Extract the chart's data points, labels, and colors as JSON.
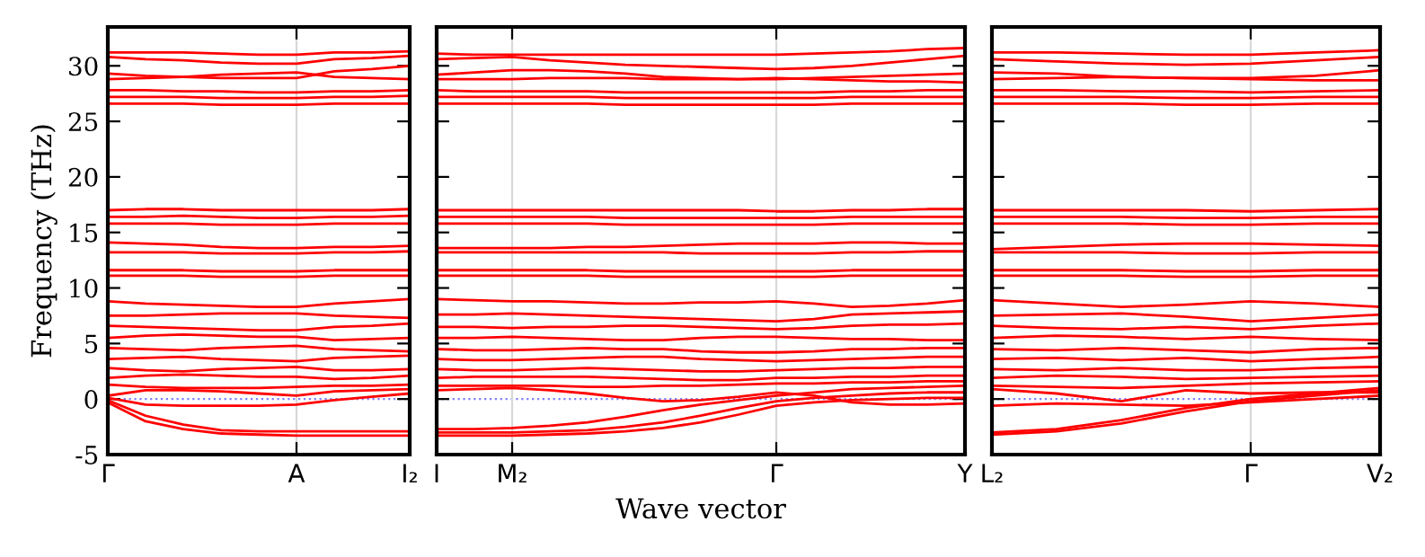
{
  "chart_data": [
    {
      "type": "line",
      "ylabel": "Frequency (THz)",
      "ylim": [
        -5,
        33.5
      ],
      "yticks": [
        -5,
        0,
        5,
        10,
        15,
        20,
        25,
        30
      ],
      "categories": [
        "Γ",
        null,
        null,
        null,
        null,
        "A",
        null,
        null,
        "I₂"
      ],
      "grid": false,
      "line_style": "solid",
      "ref_lines": [
        {
          "axis": "y",
          "value": 0,
          "color": "#8080ff",
          "line_style": "dotted"
        },
        {
          "axis": "x",
          "value": "A",
          "color": "#d8d8d8",
          "line_style": "solid"
        }
      ],
      "series": [
        {
          "color": "#ff0000",
          "values": [
            31.2,
            31.2,
            31.2,
            31.1,
            31.0,
            31.0,
            31.2,
            31.2,
            31.3
          ]
        },
        {
          "color": "#ff0000",
          "values": [
            30.8,
            30.6,
            30.5,
            30.3,
            30.2,
            30.2,
            30.6,
            30.7,
            30.9
          ]
        },
        {
          "color": "#ff0000",
          "values": [
            29.3,
            29.1,
            29.0,
            28.9,
            28.9,
            28.9,
            29.5,
            29.7,
            30.0
          ]
        },
        {
          "color": "#ff0000",
          "values": [
            28.8,
            28.9,
            29.0,
            29.2,
            29.3,
            29.4,
            29.0,
            28.9,
            28.8
          ]
        },
        {
          "color": "#ff0000",
          "values": [
            27.8,
            27.8,
            27.7,
            27.7,
            27.6,
            27.6,
            27.7,
            27.7,
            27.8
          ]
        },
        {
          "color": "#ff0000",
          "values": [
            27.2,
            27.2,
            27.2,
            27.1,
            27.1,
            27.1,
            27.2,
            27.2,
            27.3
          ]
        },
        {
          "color": "#ff0000",
          "values": [
            26.6,
            26.6,
            26.6,
            26.5,
            26.5,
            26.5,
            26.6,
            26.6,
            26.6
          ]
        },
        {
          "color": "#ff0000",
          "values": [
            17.0,
            17.1,
            17.1,
            17.0,
            17.0,
            17.0,
            17.0,
            17.0,
            17.1
          ]
        },
        {
          "color": "#ff0000",
          "values": [
            16.4,
            16.4,
            16.5,
            16.4,
            16.3,
            16.3,
            16.4,
            16.4,
            16.5
          ]
        },
        {
          "color": "#ff0000",
          "values": [
            15.8,
            15.8,
            15.8,
            15.7,
            15.7,
            15.7,
            15.8,
            15.8,
            15.8
          ]
        },
        {
          "color": "#ff0000",
          "values": [
            14.1,
            14.0,
            13.9,
            13.7,
            13.6,
            13.6,
            13.7,
            13.7,
            13.8
          ]
        },
        {
          "color": "#ff0000",
          "values": [
            13.2,
            13.2,
            13.2,
            13.1,
            13.1,
            13.1,
            13.2,
            13.2,
            13.3
          ]
        },
        {
          "color": "#ff0000",
          "values": [
            11.6,
            11.6,
            11.6,
            11.5,
            11.5,
            11.5,
            11.6,
            11.6,
            11.6
          ]
        },
        {
          "color": "#ff0000",
          "values": [
            11.1,
            11.1,
            11.1,
            11.0,
            11.0,
            11.0,
            11.1,
            11.1,
            11.1
          ]
        },
        {
          "color": "#ff0000",
          "values": [
            8.8,
            8.6,
            8.5,
            8.4,
            8.3,
            8.3,
            8.6,
            8.8,
            9.0
          ]
        },
        {
          "color": "#ff0000",
          "values": [
            7.5,
            7.5,
            7.6,
            7.7,
            7.7,
            7.7,
            7.5,
            7.4,
            7.3
          ]
        },
        {
          "color": "#ff0000",
          "values": [
            6.6,
            6.5,
            6.4,
            6.3,
            6.2,
            6.2,
            6.5,
            6.6,
            6.8
          ]
        },
        {
          "color": "#ff0000",
          "values": [
            5.5,
            5.7,
            5.8,
            5.7,
            5.6,
            5.6,
            5.3,
            5.4,
            5.5
          ]
        },
        {
          "color": "#ff0000",
          "values": [
            4.6,
            4.5,
            4.4,
            4.6,
            4.7,
            4.8,
            4.5,
            4.4,
            4.3
          ]
        },
        {
          "color": "#ff0000",
          "values": [
            3.6,
            3.7,
            3.8,
            3.6,
            3.5,
            3.4,
            3.7,
            3.8,
            3.9
          ]
        },
        {
          "color": "#ff0000",
          "values": [
            2.8,
            2.6,
            2.5,
            2.7,
            2.8,
            2.9,
            2.6,
            2.6,
            2.7
          ]
        },
        {
          "color": "#ff0000",
          "values": [
            1.9,
            2.1,
            2.2,
            2.1,
            2.0,
            2.0,
            1.8,
            1.9,
            2.1
          ]
        },
        {
          "color": "#ff0000",
          "values": [
            1.3,
            1.1,
            1.0,
            1.0,
            1.0,
            1.1,
            1.2,
            1.2,
            1.3
          ]
        },
        {
          "color": "#ff0000",
          "values": [
            0.3,
            0.8,
            0.8,
            0.7,
            0.5,
            0.3,
            0.7,
            0.8,
            0.9
          ]
        },
        {
          "color": "#ff0000",
          "values": [
            0.1,
            -0.5,
            -0.6,
            -0.6,
            -0.6,
            -0.5,
            -0.1,
            0.2,
            0.5
          ]
        },
        {
          "color": "#ff0000",
          "values": [
            -0.1,
            -1.5,
            -2.3,
            -2.8,
            -2.9,
            -2.9,
            -2.9,
            -2.9,
            -2.9
          ]
        },
        {
          "color": "#ff0000",
          "values": [
            -0.3,
            -2.0,
            -2.7,
            -3.1,
            -3.2,
            -3.3,
            -3.3,
            -3.3,
            -3.3
          ]
        }
      ]
    },
    {
      "type": "line",
      "xlabel": "Wave vector",
      "tick_labels": "x",
      "ylim": [
        -5,
        33.5
      ],
      "yticks": [
        -5,
        0,
        5,
        10,
        15,
        20,
        25,
        30
      ],
      "categories": [
        "I",
        null,
        "M₂",
        null,
        null,
        null,
        null,
        null,
        null,
        "Γ",
        null,
        null,
        null,
        null,
        "Y"
      ],
      "grid": false,
      "line_style": "solid",
      "ref_lines": [
        {
          "axis": "y",
          "value": 0,
          "color": "#8080ff",
          "line_style": "dotted"
        },
        {
          "axis": "x",
          "value": "M₂",
          "color": "#d8d8d8",
          "line_style": "solid"
        },
        {
          "axis": "x",
          "value": "Γ",
          "color": "#d8d8d8",
          "line_style": "solid"
        }
      ],
      "series": [
        {
          "color": "#ff0000",
          "values": [
            31.1,
            31.0,
            31.0,
            31.0,
            31.0,
            31.0,
            31.0,
            31.0,
            31.0,
            31.0,
            31.1,
            31.2,
            31.3,
            31.5,
            31.6
          ]
        },
        {
          "color": "#ff0000",
          "values": [
            30.6,
            30.7,
            30.8,
            30.5,
            30.3,
            30.1,
            30.0,
            29.9,
            29.8,
            29.7,
            29.8,
            30.0,
            30.3,
            30.6,
            30.9
          ]
        },
        {
          "color": "#ff0000",
          "values": [
            29.2,
            29.4,
            29.6,
            29.6,
            29.5,
            29.3,
            29.0,
            28.9,
            28.8,
            28.8,
            28.9,
            29.0,
            29.1,
            29.2,
            29.3
          ]
        },
        {
          "color": "#ff0000",
          "values": [
            28.8,
            28.8,
            28.8,
            28.9,
            28.9,
            28.9,
            28.8,
            28.8,
            28.8,
            28.9,
            28.8,
            28.7,
            28.6,
            28.6,
            28.5
          ]
        },
        {
          "color": "#ff0000",
          "values": [
            27.8,
            27.7,
            27.7,
            27.7,
            27.7,
            27.6,
            27.6,
            27.6,
            27.6,
            27.6,
            27.6,
            27.7,
            27.7,
            27.8,
            27.8
          ]
        },
        {
          "color": "#ff0000",
          "values": [
            27.2,
            27.2,
            27.2,
            27.2,
            27.2,
            27.1,
            27.1,
            27.1,
            27.1,
            27.1,
            27.1,
            27.2,
            27.2,
            27.2,
            27.2
          ]
        },
        {
          "color": "#ff0000",
          "values": [
            26.6,
            26.6,
            26.6,
            26.6,
            26.6,
            26.5,
            26.5,
            26.5,
            26.5,
            26.5,
            26.5,
            26.6,
            26.6,
            26.6,
            26.6
          ]
        },
        {
          "color": "#ff0000",
          "values": [
            17.0,
            17.0,
            17.0,
            17.0,
            17.0,
            17.0,
            17.0,
            17.0,
            17.0,
            16.9,
            16.9,
            17.0,
            17.0,
            17.1,
            17.1
          ]
        },
        {
          "color": "#ff0000",
          "values": [
            16.4,
            16.4,
            16.4,
            16.4,
            16.4,
            16.3,
            16.3,
            16.3,
            16.3,
            16.3,
            16.3,
            16.4,
            16.4,
            16.4,
            16.4
          ]
        },
        {
          "color": "#ff0000",
          "values": [
            15.8,
            15.8,
            15.8,
            15.8,
            15.8,
            15.7,
            15.7,
            15.7,
            15.7,
            15.7,
            15.7,
            15.8,
            15.8,
            15.8,
            15.8
          ]
        },
        {
          "color": "#ff0000",
          "values": [
            13.6,
            13.6,
            13.6,
            13.6,
            13.7,
            13.7,
            13.8,
            13.9,
            14.0,
            14.0,
            14.0,
            14.1,
            14.1,
            14.0,
            14.0
          ]
        },
        {
          "color": "#ff0000",
          "values": [
            13.2,
            13.2,
            13.2,
            13.2,
            13.2,
            13.2,
            13.2,
            13.1,
            13.1,
            13.1,
            13.1,
            13.2,
            13.2,
            13.3,
            13.3
          ]
        },
        {
          "color": "#ff0000",
          "values": [
            11.6,
            11.6,
            11.6,
            11.6,
            11.6,
            11.5,
            11.5,
            11.5,
            11.5,
            11.5,
            11.5,
            11.6,
            11.6,
            11.6,
            11.6
          ]
        },
        {
          "color": "#ff0000",
          "values": [
            11.1,
            11.1,
            11.1,
            11.1,
            11.1,
            11.0,
            11.0,
            11.0,
            11.0,
            11.0,
            11.0,
            11.1,
            11.1,
            11.1,
            11.1
          ]
        },
        {
          "color": "#ff0000",
          "values": [
            9.0,
            8.9,
            8.8,
            8.8,
            8.7,
            8.6,
            8.6,
            8.7,
            8.7,
            8.8,
            8.6,
            8.3,
            8.4,
            8.6,
            8.9
          ]
        },
        {
          "color": "#ff0000",
          "values": [
            7.6,
            7.6,
            7.7,
            7.6,
            7.5,
            7.4,
            7.3,
            7.2,
            7.1,
            7.0,
            7.2,
            7.6,
            7.7,
            7.8,
            7.9
          ]
        },
        {
          "color": "#ff0000",
          "values": [
            6.5,
            6.5,
            6.4,
            6.5,
            6.5,
            6.6,
            6.6,
            6.5,
            6.4,
            6.3,
            6.4,
            6.6,
            6.7,
            6.7,
            6.8
          ]
        },
        {
          "color": "#ff0000",
          "values": [
            5.5,
            5.5,
            5.6,
            5.5,
            5.4,
            5.3,
            5.3,
            5.5,
            5.6,
            5.6,
            5.5,
            5.4,
            5.4,
            5.3,
            5.3
          ]
        },
        {
          "color": "#ff0000",
          "values": [
            4.5,
            4.4,
            4.4,
            4.5,
            4.6,
            4.5,
            4.5,
            4.3,
            4.2,
            4.2,
            4.3,
            4.5,
            4.5,
            4.6,
            4.6
          ]
        },
        {
          "color": "#ff0000",
          "values": [
            3.6,
            3.5,
            3.5,
            3.6,
            3.7,
            3.8,
            3.8,
            3.6,
            3.5,
            3.4,
            3.5,
            3.6,
            3.7,
            3.8,
            3.8
          ]
        },
        {
          "color": "#ff0000",
          "values": [
            2.7,
            2.6,
            2.6,
            2.7,
            2.8,
            2.7,
            2.6,
            2.5,
            2.5,
            2.6,
            2.7,
            2.8,
            2.8,
            2.9,
            2.9
          ]
        },
        {
          "color": "#ff0000",
          "values": [
            1.9,
            2.0,
            2.0,
            2.0,
            2.0,
            1.9,
            1.8,
            1.7,
            1.7,
            1.9,
            1.9,
            2.0,
            2.0,
            2.1,
            2.1
          ]
        },
        {
          "color": "#ff0000",
          "values": [
            1.2,
            1.2,
            1.2,
            1.2,
            1.1,
            1.1,
            1.2,
            1.2,
            1.3,
            1.4,
            1.4,
            1.5,
            1.5,
            1.6,
            1.6
          ]
        },
        {
          "color": "#ff0000",
          "values": [
            0.8,
            0.9,
            1.0,
            0.8,
            0.5,
            0.1,
            -0.2,
            -0.1,
            0.2,
            0.6,
            0.3,
            -0.3,
            -0.5,
            -0.5,
            -0.4
          ]
        },
        {
          "color": "#ff0000",
          "values": [
            -2.7,
            -2.7,
            -2.6,
            -2.4,
            -2.1,
            -1.6,
            -1.0,
            -0.5,
            -0.1,
            0.3,
            0.6,
            0.9,
            1.0,
            1.1,
            1.2
          ]
        },
        {
          "color": "#ff0000",
          "values": [
            -3.0,
            -3.0,
            -3.0,
            -2.9,
            -2.8,
            -2.5,
            -2.1,
            -1.5,
            -0.8,
            -0.2,
            0.1,
            0.3,
            0.5,
            0.6,
            0.6
          ]
        },
        {
          "color": "#ff0000",
          "values": [
            -3.3,
            -3.3,
            -3.3,
            -3.2,
            -3.1,
            -2.9,
            -2.6,
            -2.1,
            -1.4,
            -0.6,
            -0.3,
            -0.1,
            0.0,
            0.1,
            0.1
          ]
        }
      ]
    },
    {
      "type": "line",
      "tick_labels": "x",
      "ylim": [
        -5,
        33.5
      ],
      "yticks": [
        -5,
        0,
        5,
        10,
        15,
        20,
        25,
        30
      ],
      "categories": [
        "L₂",
        null,
        null,
        null,
        "Γ",
        null,
        "V₂"
      ],
      "grid": false,
      "line_style": "solid",
      "ref_lines": [
        {
          "axis": "y",
          "value": 0,
          "color": "#8080ff",
          "line_style": "dotted"
        },
        {
          "axis": "x",
          "value": "Γ",
          "color": "#d8d8d8",
          "line_style": "solid"
        }
      ],
      "series": [
        {
          "color": "#ff0000",
          "values": [
            31.2,
            31.2,
            31.1,
            31.0,
            31.0,
            31.2,
            31.4
          ]
        },
        {
          "color": "#ff0000",
          "values": [
            30.6,
            30.4,
            30.2,
            30.1,
            30.2,
            30.5,
            30.8
          ]
        },
        {
          "color": "#ff0000",
          "values": [
            29.4,
            29.3,
            29.0,
            28.9,
            28.9,
            29.1,
            29.6
          ]
        },
        {
          "color": "#ff0000",
          "values": [
            28.8,
            28.9,
            29.0,
            28.9,
            28.8,
            28.7,
            28.7
          ]
        },
        {
          "color": "#ff0000",
          "values": [
            27.8,
            27.8,
            27.7,
            27.7,
            27.6,
            27.7,
            27.8
          ]
        },
        {
          "color": "#ff0000",
          "values": [
            27.2,
            27.2,
            27.2,
            27.1,
            27.1,
            27.2,
            27.2
          ]
        },
        {
          "color": "#ff0000",
          "values": [
            26.6,
            26.6,
            26.6,
            26.5,
            26.5,
            26.6,
            26.6
          ]
        },
        {
          "color": "#ff0000",
          "values": [
            17.0,
            17.0,
            17.0,
            17.0,
            16.9,
            17.0,
            17.1
          ]
        },
        {
          "color": "#ff0000",
          "values": [
            16.4,
            16.4,
            16.4,
            16.3,
            16.3,
            16.4,
            16.4
          ]
        },
        {
          "color": "#ff0000",
          "values": [
            15.8,
            15.8,
            15.8,
            15.7,
            15.7,
            15.8,
            15.8
          ]
        },
        {
          "color": "#ff0000",
          "values": [
            13.5,
            13.7,
            13.9,
            14.0,
            14.0,
            13.9,
            13.8
          ]
        },
        {
          "color": "#ff0000",
          "values": [
            13.2,
            13.2,
            13.2,
            13.1,
            13.1,
            13.2,
            13.2
          ]
        },
        {
          "color": "#ff0000",
          "values": [
            11.6,
            11.6,
            11.6,
            11.5,
            11.5,
            11.6,
            11.6
          ]
        },
        {
          "color": "#ff0000",
          "values": [
            11.1,
            11.1,
            11.1,
            11.0,
            11.0,
            11.1,
            11.1
          ]
        },
        {
          "color": "#ff0000",
          "values": [
            8.9,
            8.6,
            8.3,
            8.5,
            8.8,
            8.6,
            8.3
          ]
        },
        {
          "color": "#ff0000",
          "values": [
            7.5,
            7.6,
            7.7,
            7.4,
            7.0,
            7.3,
            7.6
          ]
        },
        {
          "color": "#ff0000",
          "values": [
            6.6,
            6.4,
            6.3,
            6.5,
            6.3,
            6.6,
            6.8
          ]
        },
        {
          "color": "#ff0000",
          "values": [
            5.5,
            5.7,
            5.6,
            5.4,
            5.6,
            5.4,
            5.3
          ]
        },
        {
          "color": "#ff0000",
          "values": [
            4.5,
            4.4,
            4.6,
            4.4,
            4.2,
            4.5,
            4.6
          ]
        },
        {
          "color": "#ff0000",
          "values": [
            3.6,
            3.7,
            3.5,
            3.7,
            3.4,
            3.6,
            3.8
          ]
        },
        {
          "color": "#ff0000",
          "values": [
            2.7,
            2.6,
            2.8,
            2.6,
            2.6,
            2.8,
            2.9
          ]
        },
        {
          "color": "#ff0000",
          "values": [
            1.9,
            2.1,
            2.0,
            1.8,
            1.9,
            2.0,
            2.1
          ]
        },
        {
          "color": "#ff0000",
          "values": [
            1.2,
            1.1,
            1.0,
            1.2,
            1.4,
            1.5,
            1.6
          ]
        },
        {
          "color": "#ff0000",
          "values": [
            0.9,
            0.5,
            -0.2,
            0.8,
            0.5,
            0.6,
            0.6
          ]
        },
        {
          "color": "#ff0000",
          "values": [
            -0.6,
            -0.4,
            -0.5,
            -0.6,
            -0.3,
            0.0,
            0.3
          ]
        },
        {
          "color": "#ff0000",
          "values": [
            -3.0,
            -2.7,
            -1.9,
            -0.8,
            0.0,
            0.5,
            1.0
          ]
        },
        {
          "color": "#ff0000",
          "values": [
            -3.2,
            -2.9,
            -2.2,
            -1.1,
            -0.2,
            0.3,
            0.8
          ]
        }
      ]
    }
  ]
}
